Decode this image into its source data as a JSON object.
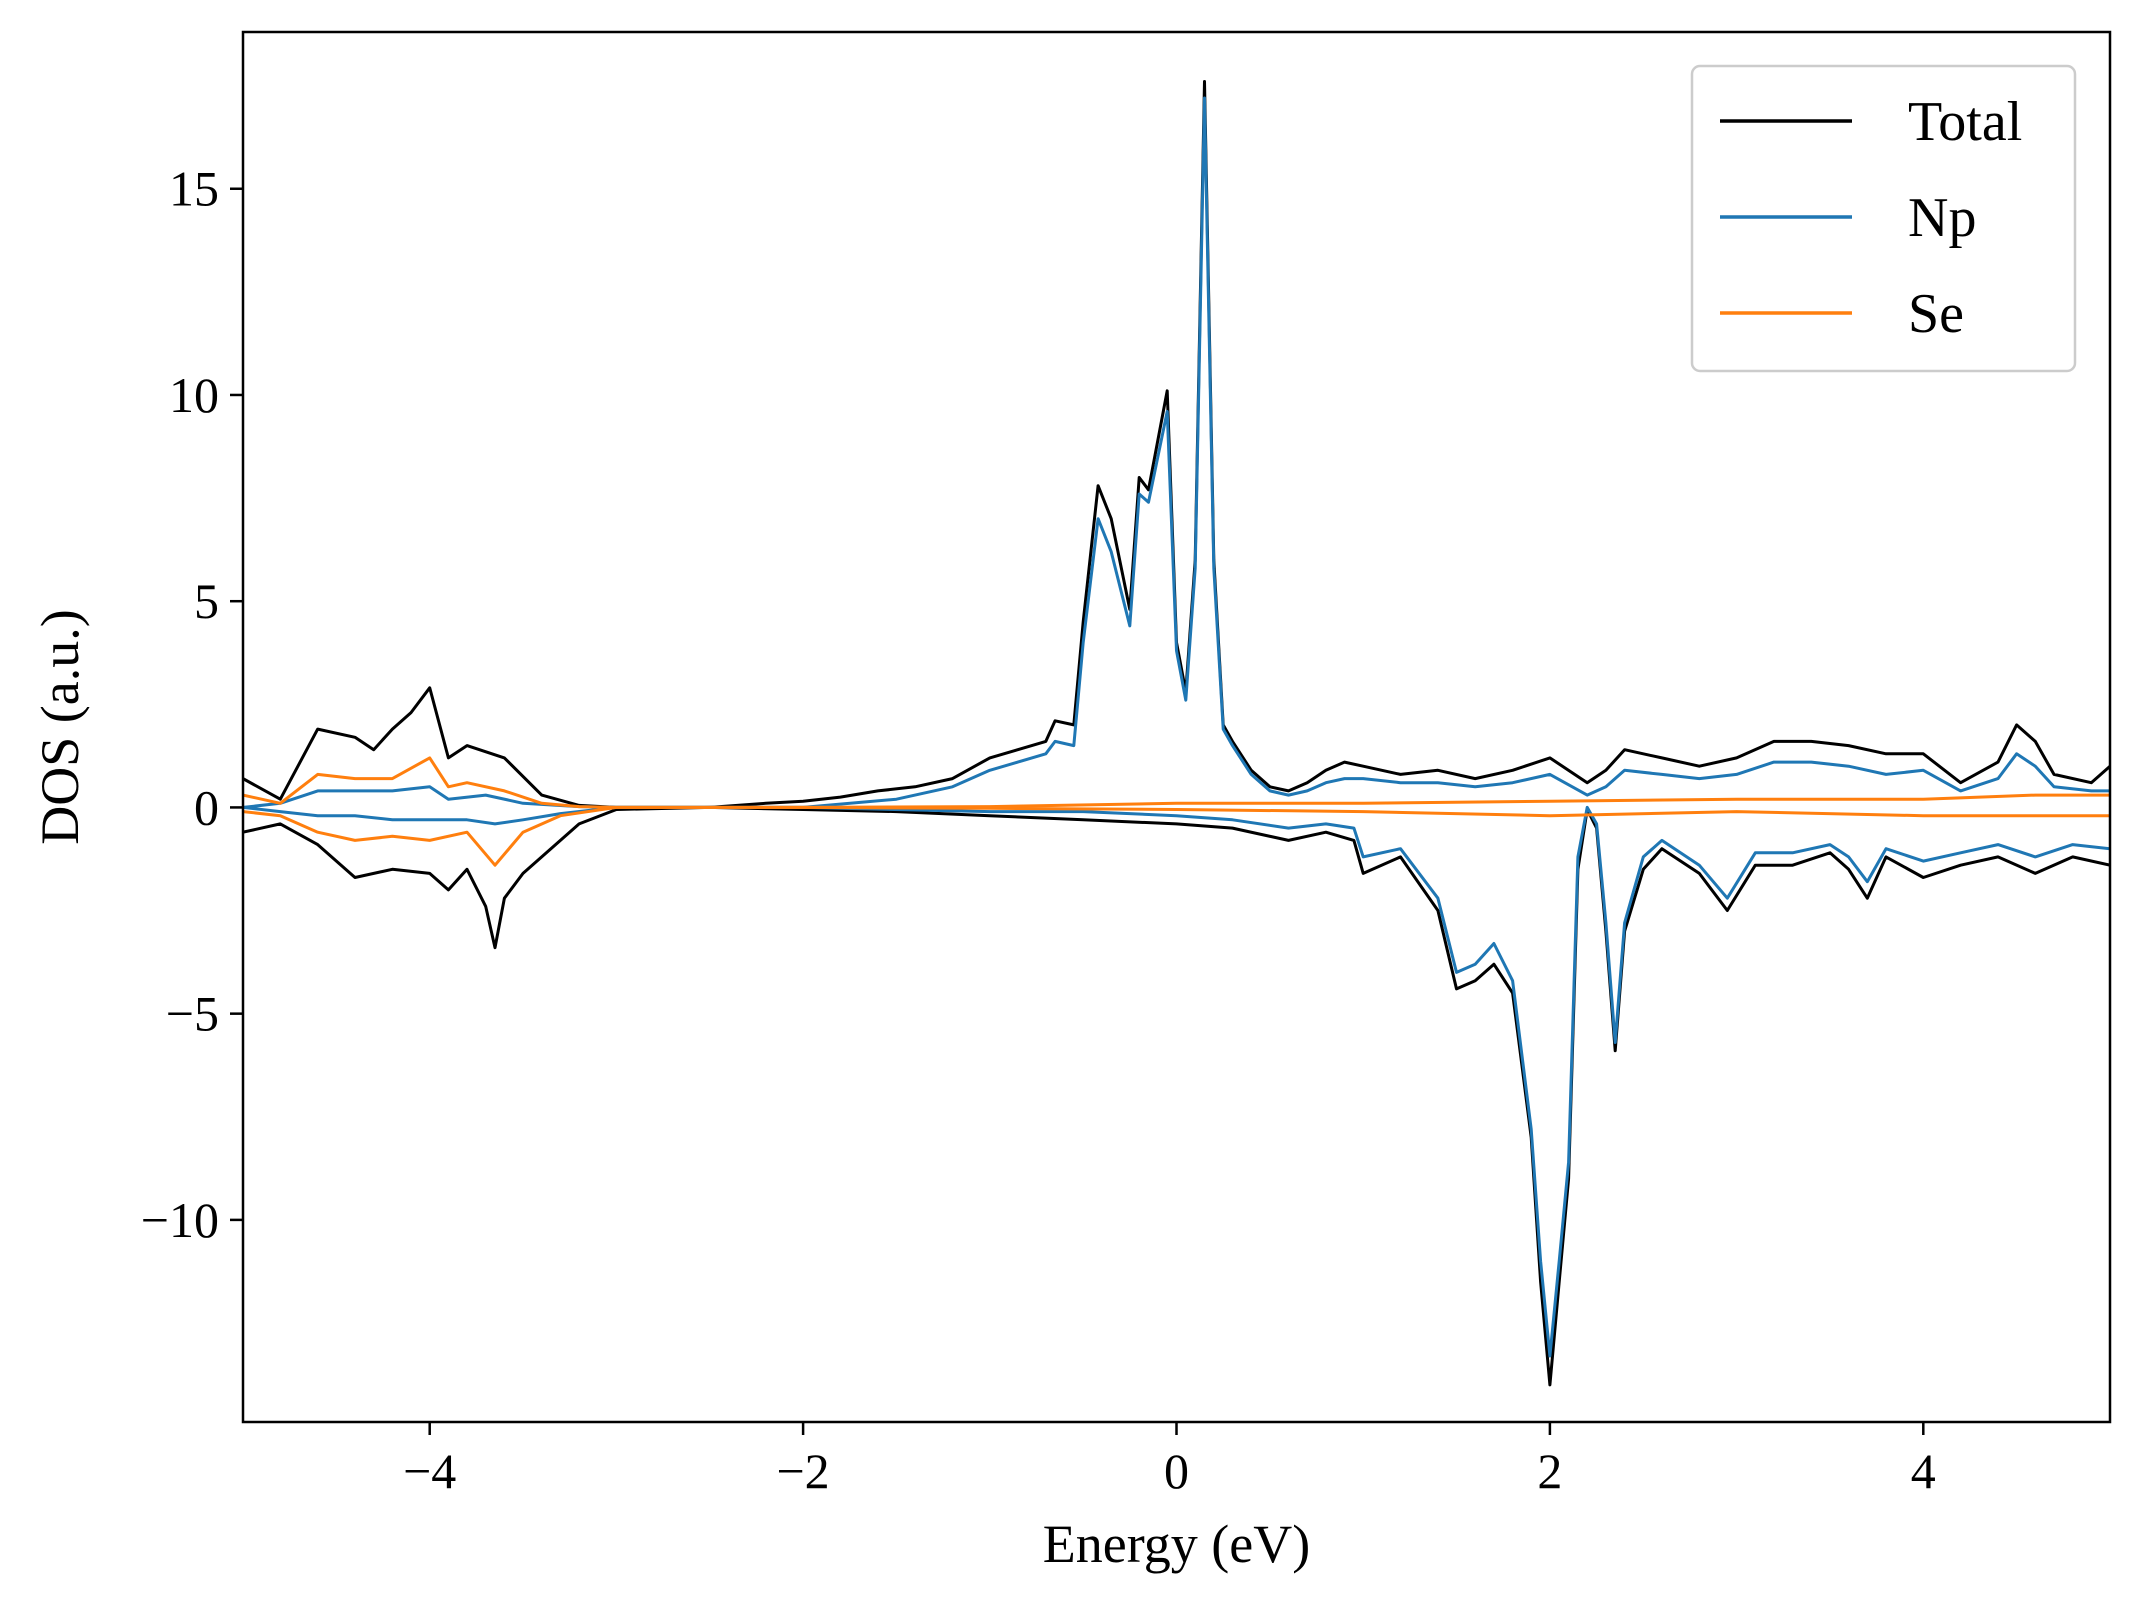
{
  "chart_data": {
    "type": "line",
    "title": "",
    "xlabel": "Energy (eV)",
    "ylabel": "DOS (a.u.)",
    "xlim": [
      -5,
      5
    ],
    "ylim": [
      -14.9,
      18.8
    ],
    "xticks": [
      -4,
      -2,
      0,
      2,
      4
    ],
    "yticks": [
      -10,
      -5,
      0,
      5,
      10,
      15
    ],
    "xtick_labels": [
      "−4",
      "−2",
      "0",
      "2",
      "4"
    ],
    "ytick_labels": [
      "−10",
      "−5",
      "0",
      "5",
      "10",
      "15"
    ],
    "grid": false,
    "legend_position": "top-right",
    "series": [
      {
        "name": "Total",
        "color": "#000000",
        "up": [
          [
            -5.0,
            0.7
          ],
          [
            -4.8,
            0.2
          ],
          [
            -4.6,
            1.9
          ],
          [
            -4.4,
            1.7
          ],
          [
            -4.3,
            1.4
          ],
          [
            -4.2,
            1.9
          ],
          [
            -4.1,
            2.3
          ],
          [
            -4.0,
            2.9
          ],
          [
            -3.9,
            1.2
          ],
          [
            -3.8,
            1.5
          ],
          [
            -3.6,
            1.2
          ],
          [
            -3.4,
            0.3
          ],
          [
            -3.2,
            0.05
          ],
          [
            -3.0,
            0.0
          ],
          [
            -2.5,
            0.0
          ],
          [
            -2.2,
            0.1
          ],
          [
            -2.0,
            0.15
          ],
          [
            -1.8,
            0.25
          ],
          [
            -1.6,
            0.4
          ],
          [
            -1.4,
            0.5
          ],
          [
            -1.2,
            0.7
          ],
          [
            -1.0,
            1.2
          ],
          [
            -0.85,
            1.4
          ],
          [
            -0.7,
            1.6
          ],
          [
            -0.65,
            2.1
          ],
          [
            -0.55,
            2.0
          ],
          [
            -0.5,
            4.5
          ],
          [
            -0.42,
            7.8
          ],
          [
            -0.35,
            7.0
          ],
          [
            -0.25,
            4.8
          ],
          [
            -0.2,
            8.0
          ],
          [
            -0.15,
            7.7
          ],
          [
            -0.05,
            10.1
          ],
          [
            0.0,
            4.0
          ],
          [
            0.05,
            2.8
          ],
          [
            0.1,
            6.0
          ],
          [
            0.15,
            17.6
          ],
          [
            0.2,
            6.0
          ],
          [
            0.25,
            2.0
          ],
          [
            0.3,
            1.6
          ],
          [
            0.4,
            0.9
          ],
          [
            0.5,
            0.5
          ],
          [
            0.6,
            0.4
          ],
          [
            0.7,
            0.6
          ],
          [
            0.8,
            0.9
          ],
          [
            0.9,
            1.1
          ],
          [
            1.0,
            1.0
          ],
          [
            1.2,
            0.8
          ],
          [
            1.4,
            0.9
          ],
          [
            1.6,
            0.7
          ],
          [
            1.8,
            0.9
          ],
          [
            2.0,
            1.2
          ],
          [
            2.2,
            0.6
          ],
          [
            2.3,
            0.9
          ],
          [
            2.4,
            1.4
          ],
          [
            2.6,
            1.2
          ],
          [
            2.8,
            1.0
          ],
          [
            3.0,
            1.2
          ],
          [
            3.2,
            1.6
          ],
          [
            3.4,
            1.6
          ],
          [
            3.6,
            1.5
          ],
          [
            3.8,
            1.3
          ],
          [
            4.0,
            1.3
          ],
          [
            4.2,
            0.6
          ],
          [
            4.4,
            1.1
          ],
          [
            4.5,
            2.0
          ],
          [
            4.6,
            1.6
          ],
          [
            4.7,
            0.8
          ],
          [
            4.9,
            0.6
          ],
          [
            5.0,
            1.0
          ]
        ],
        "down": [
          [
            -5.0,
            -0.6
          ],
          [
            -4.8,
            -0.4
          ],
          [
            -4.6,
            -0.9
          ],
          [
            -4.4,
            -1.7
          ],
          [
            -4.2,
            -1.5
          ],
          [
            -4.0,
            -1.6
          ],
          [
            -3.9,
            -2.0
          ],
          [
            -3.8,
            -1.5
          ],
          [
            -3.7,
            -2.4
          ],
          [
            -3.65,
            -3.4
          ],
          [
            -3.6,
            -2.2
          ],
          [
            -3.5,
            -1.6
          ],
          [
            -3.4,
            -1.2
          ],
          [
            -3.2,
            -0.4
          ],
          [
            -3.0,
            -0.05
          ],
          [
            -2.5,
            0.0
          ],
          [
            -2.0,
            -0.05
          ],
          [
            -1.5,
            -0.1
          ],
          [
            -1.0,
            -0.2
          ],
          [
            -0.5,
            -0.3
          ],
          [
            0.0,
            -0.4
          ],
          [
            0.3,
            -0.5
          ],
          [
            0.6,
            -0.8
          ],
          [
            0.8,
            -0.6
          ],
          [
            0.95,
            -0.8
          ],
          [
            1.0,
            -1.6
          ],
          [
            1.2,
            -1.2
          ],
          [
            1.4,
            -2.5
          ],
          [
            1.5,
            -4.4
          ],
          [
            1.6,
            -4.2
          ],
          [
            1.7,
            -3.8
          ],
          [
            1.8,
            -4.5
          ],
          [
            1.9,
            -8.0
          ],
          [
            1.95,
            -11.5
          ],
          [
            2.0,
            -14.0
          ],
          [
            2.05,
            -11.5
          ],
          [
            2.1,
            -9.0
          ],
          [
            2.15,
            -1.5
          ],
          [
            2.2,
            -0.05
          ],
          [
            2.25,
            -0.5
          ],
          [
            2.3,
            -3.0
          ],
          [
            2.35,
            -5.9
          ],
          [
            2.4,
            -3.0
          ],
          [
            2.5,
            -1.5
          ],
          [
            2.6,
            -1.0
          ],
          [
            2.8,
            -1.6
          ],
          [
            2.95,
            -2.5
          ],
          [
            3.1,
            -1.4
          ],
          [
            3.3,
            -1.4
          ],
          [
            3.5,
            -1.1
          ],
          [
            3.6,
            -1.5
          ],
          [
            3.7,
            -2.2
          ],
          [
            3.8,
            -1.2
          ],
          [
            4.0,
            -1.7
          ],
          [
            4.2,
            -1.4
          ],
          [
            4.4,
            -1.2
          ],
          [
            4.6,
            -1.6
          ],
          [
            4.8,
            -1.2
          ],
          [
            5.0,
            -1.4
          ]
        ]
      },
      {
        "name": "Np",
        "color": "#1f77b4",
        "up": [
          [
            -5.0,
            0.0
          ],
          [
            -4.8,
            0.1
          ],
          [
            -4.6,
            0.4
          ],
          [
            -4.4,
            0.4
          ],
          [
            -4.2,
            0.4
          ],
          [
            -4.0,
            0.5
          ],
          [
            -3.9,
            0.2
          ],
          [
            -3.7,
            0.3
          ],
          [
            -3.5,
            0.1
          ],
          [
            -3.2,
            0.02
          ],
          [
            -3.0,
            0.0
          ],
          [
            -2.0,
            0.0
          ],
          [
            -1.5,
            0.2
          ],
          [
            -1.2,
            0.5
          ],
          [
            -1.0,
            0.9
          ],
          [
            -0.85,
            1.1
          ],
          [
            -0.7,
            1.3
          ],
          [
            -0.65,
            1.6
          ],
          [
            -0.55,
            1.5
          ],
          [
            -0.5,
            4.0
          ],
          [
            -0.42,
            7.0
          ],
          [
            -0.35,
            6.2
          ],
          [
            -0.25,
            4.4
          ],
          [
            -0.2,
            7.6
          ],
          [
            -0.15,
            7.4
          ],
          [
            -0.05,
            9.6
          ],
          [
            0.0,
            3.8
          ],
          [
            0.05,
            2.6
          ],
          [
            0.1,
            5.8
          ],
          [
            0.15,
            17.2
          ],
          [
            0.2,
            5.8
          ],
          [
            0.25,
            1.9
          ],
          [
            0.3,
            1.5
          ],
          [
            0.4,
            0.8
          ],
          [
            0.5,
            0.4
          ],
          [
            0.6,
            0.3
          ],
          [
            0.7,
            0.4
          ],
          [
            0.8,
            0.6
          ],
          [
            0.9,
            0.7
          ],
          [
            1.0,
            0.7
          ],
          [
            1.2,
            0.6
          ],
          [
            1.4,
            0.6
          ],
          [
            1.6,
            0.5
          ],
          [
            1.8,
            0.6
          ],
          [
            2.0,
            0.8
          ],
          [
            2.2,
            0.3
          ],
          [
            2.3,
            0.5
          ],
          [
            2.4,
            0.9
          ],
          [
            2.6,
            0.8
          ],
          [
            2.8,
            0.7
          ],
          [
            3.0,
            0.8
          ],
          [
            3.2,
            1.1
          ],
          [
            3.4,
            1.1
          ],
          [
            3.6,
            1.0
          ],
          [
            3.8,
            0.8
          ],
          [
            4.0,
            0.9
          ],
          [
            4.2,
            0.4
          ],
          [
            4.4,
            0.7
          ],
          [
            4.5,
            1.3
          ],
          [
            4.6,
            1.0
          ],
          [
            4.7,
            0.5
          ],
          [
            4.9,
            0.4
          ],
          [
            5.0,
            0.4
          ]
        ],
        "down": [
          [
            -5.0,
            0.0
          ],
          [
            -4.8,
            -0.1
          ],
          [
            -4.6,
            -0.2
          ],
          [
            -4.4,
            -0.2
          ],
          [
            -4.2,
            -0.3
          ],
          [
            -4.0,
            -0.3
          ],
          [
            -3.8,
            -0.3
          ],
          [
            -3.65,
            -0.4
          ],
          [
            -3.5,
            -0.3
          ],
          [
            -3.3,
            -0.15
          ],
          [
            -3.0,
            0.0
          ],
          [
            -2.0,
            0.0
          ],
          [
            -1.0,
            -0.1
          ],
          [
            -0.5,
            -0.1
          ],
          [
            0.0,
            -0.2
          ],
          [
            0.3,
            -0.3
          ],
          [
            0.6,
            -0.5
          ],
          [
            0.8,
            -0.4
          ],
          [
            0.95,
            -0.5
          ],
          [
            1.0,
            -1.2
          ],
          [
            1.2,
            -1.0
          ],
          [
            1.4,
            -2.2
          ],
          [
            1.5,
            -4.0
          ],
          [
            1.6,
            -3.8
          ],
          [
            1.7,
            -3.3
          ],
          [
            1.8,
            -4.2
          ],
          [
            1.9,
            -7.8
          ],
          [
            1.95,
            -11.0
          ],
          [
            2.0,
            -13.3
          ],
          [
            2.05,
            -11.0
          ],
          [
            2.1,
            -8.6
          ],
          [
            2.15,
            -1.2
          ],
          [
            2.2,
            0.0
          ],
          [
            2.25,
            -0.4
          ],
          [
            2.3,
            -2.8
          ],
          [
            2.35,
            -5.7
          ],
          [
            2.4,
            -2.8
          ],
          [
            2.5,
            -1.2
          ],
          [
            2.6,
            -0.8
          ],
          [
            2.8,
            -1.4
          ],
          [
            2.95,
            -2.2
          ],
          [
            3.1,
            -1.1
          ],
          [
            3.3,
            -1.1
          ],
          [
            3.5,
            -0.9
          ],
          [
            3.6,
            -1.2
          ],
          [
            3.7,
            -1.8
          ],
          [
            3.8,
            -1.0
          ],
          [
            4.0,
            -1.3
          ],
          [
            4.2,
            -1.1
          ],
          [
            4.4,
            -0.9
          ],
          [
            4.6,
            -1.2
          ],
          [
            4.8,
            -0.9
          ],
          [
            5.0,
            -1.0
          ]
        ]
      },
      {
        "name": "Se",
        "color": "#ff7f0e",
        "up": [
          [
            -5.0,
            0.3
          ],
          [
            -4.8,
            0.1
          ],
          [
            -4.6,
            0.8
          ],
          [
            -4.4,
            0.7
          ],
          [
            -4.2,
            0.7
          ],
          [
            -4.0,
            1.2
          ],
          [
            -3.9,
            0.5
          ],
          [
            -3.8,
            0.6
          ],
          [
            -3.6,
            0.4
          ],
          [
            -3.4,
            0.1
          ],
          [
            -3.2,
            0.02
          ],
          [
            -3.0,
            0.0
          ],
          [
            -2.0,
            0.0
          ],
          [
            -1.0,
            0.02
          ],
          [
            0.0,
            0.1
          ],
          [
            1.0,
            0.1
          ],
          [
            2.0,
            0.15
          ],
          [
            3.0,
            0.2
          ],
          [
            4.0,
            0.2
          ],
          [
            4.6,
            0.3
          ],
          [
            5.0,
            0.3
          ]
        ],
        "down": [
          [
            -5.0,
            -0.1
          ],
          [
            -4.8,
            -0.2
          ],
          [
            -4.6,
            -0.6
          ],
          [
            -4.4,
            -0.8
          ],
          [
            -4.2,
            -0.7
          ],
          [
            -4.0,
            -0.8
          ],
          [
            -3.8,
            -0.6
          ],
          [
            -3.65,
            -1.4
          ],
          [
            -3.5,
            -0.6
          ],
          [
            -3.3,
            -0.2
          ],
          [
            -3.0,
            0.0
          ],
          [
            -2.0,
            0.0
          ],
          [
            -1.0,
            -0.02
          ],
          [
            0.0,
            -0.05
          ],
          [
            1.0,
            -0.1
          ],
          [
            2.0,
            -0.2
          ],
          [
            3.0,
            -0.1
          ],
          [
            4.0,
            -0.2
          ],
          [
            5.0,
            -0.2
          ]
        ]
      }
    ]
  }
}
